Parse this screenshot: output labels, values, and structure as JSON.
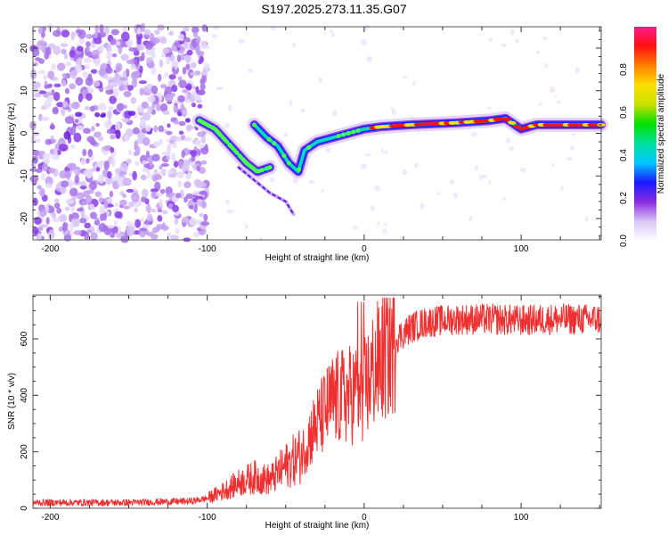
{
  "title": "S197.2025.273.11.35.G07",
  "chart_data": [
    {
      "type": "heatmap",
      "name": "spectrogram",
      "xlabel": "Height of straight line (km)",
      "ylabel": "Frequency (Hz)",
      "xlim": [
        -211,
        151
      ],
      "ylim": [
        -25,
        25
      ],
      "xticks": [
        -200,
        -100,
        0,
        100
      ],
      "yticks": [
        -20,
        -10,
        0,
        10,
        20
      ],
      "colorbar": {
        "label": "Normalized spectral amplitude",
        "ticks": [
          "0.0",
          "0.2",
          "0.4",
          "0.6",
          "0.8"
        ],
        "range": [
          0,
          1
        ],
        "colormap": [
          "#ffffff",
          "#d9c6f7",
          "#8a2be2",
          "#1a1aff",
          "#00c8ff",
          "#00e0a0",
          "#00e000",
          "#c8e000",
          "#ffe000",
          "#ff8000",
          "#ff1010",
          "#ff1a8c"
        ]
      },
      "ridges": [
        {
          "name": "main-track",
          "points": [
            [
              -105,
              3
            ],
            [
              -95,
              1
            ],
            [
              -85,
              -3
            ],
            [
              -75,
              -7
            ],
            [
              -68,
              -9
            ],
            [
              -60,
              -8
            ]
          ]
        },
        {
          "name": "second-track",
          "points": [
            [
              -70,
              2
            ],
            [
              -62,
              -1
            ],
            [
              -55,
              -3
            ],
            [
              -48,
              -7
            ],
            [
              -42,
              -9
            ],
            [
              -38,
              -4
            ],
            [
              -30,
              -2
            ],
            [
              -20,
              -1
            ],
            [
              -10,
              0
            ],
            [
              0,
              1
            ],
            [
              10,
              1.5
            ],
            [
              30,
              2
            ],
            [
              60,
              2.5
            ],
            [
              80,
              3
            ],
            [
              90,
              3.5
            ],
            [
              100,
              1
            ],
            [
              110,
              2
            ],
            [
              130,
              2
            ],
            [
              151,
              2
            ]
          ]
        },
        {
          "name": "faint-branch",
          "points": [
            [
              -80,
              -8
            ],
            [
              -70,
              -11
            ],
            [
              -60,
              -14
            ],
            [
              -50,
              -16
            ],
            [
              -45,
              -19
            ]
          ]
        }
      ],
      "noise_region_km": [
        -211,
        -100
      ]
    },
    {
      "type": "line",
      "name": "snr",
      "xlabel": "Height of straight line (km)",
      "ylabel": "SNR (10 * v/v)",
      "xlim": [
        -211,
        151
      ],
      "ylim": [
        0,
        755
      ],
      "xticks": [
        -200,
        -100,
        0,
        100
      ],
      "yticks": [
        0,
        200,
        400,
        600
      ],
      "color": "#f03030",
      "envelope": {
        "x": [
          -211,
          -150,
          -110,
          -100,
          -90,
          -80,
          -70,
          -60,
          -50,
          -40,
          -35,
          -30,
          -20,
          -10,
          0,
          5,
          10,
          20,
          30,
          40,
          60,
          80,
          100,
          120,
          151
        ],
        "y": [
          20,
          20,
          25,
          35,
          60,
          90,
          110,
          100,
          150,
          190,
          250,
          300,
          380,
          400,
          420,
          480,
          520,
          600,
          640,
          660,
          670,
          670,
          665,
          670,
          670
        ]
      }
    }
  ]
}
